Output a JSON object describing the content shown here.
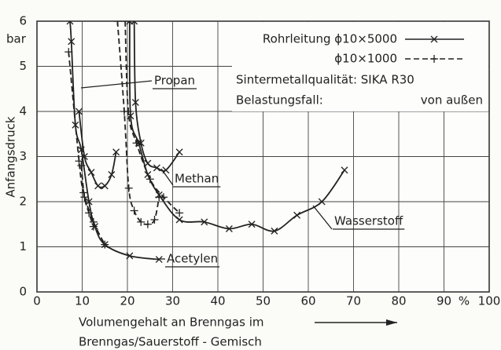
{
  "chart_data": {
    "type": "line",
    "xlabel": [
      "Volumengehalt an Brenngas im",
      "Brenngas/Sauerstoff - Gemisch"
    ],
    "ylabel": "Anfangsdruck",
    "x_unit": "%",
    "y_unit": "bar",
    "xlim": [
      0,
      100
    ],
    "ylim": [
      0,
      6
    ],
    "xticks": [
      0,
      10,
      20,
      30,
      40,
      50,
      60,
      70,
      80,
      90,
      100
    ],
    "yticks": [
      0,
      1,
      2,
      3,
      4,
      5,
      6
    ],
    "grid": true,
    "color": "#222222",
    "legend": [
      {
        "label": "Rohrleitung ϕ10×5000",
        "dashed": false,
        "marker": "x"
      },
      {
        "label": "ϕ10×1000",
        "dashed": true,
        "marker": "+"
      }
    ],
    "notes": [
      "Sintermetallqualität: SIKA R30",
      "Belastungsfall:",
      "von außen"
    ],
    "series": [
      {
        "name": "Propan",
        "curves": [
          {
            "x": [
              9.3,
              10.5,
              12,
              13.5,
              15,
              16.5,
              17.5
            ],
            "values": [
              4.0,
              3.0,
              2.65,
              2.35,
              2.35,
              2.6,
              3.1
            ]
          },
          {
            "x": [
              9.8,
              10.5,
              11.5,
              12.5
            ],
            "values": [
              2.8,
              2.1,
              1.75,
              1.45
            ]
          }
        ]
      },
      {
        "name": "Methan",
        "curves": [
          {
            "x": [
              21.5,
              21.8,
              23,
              24.5,
              26.5,
              28.5,
              31.5
            ],
            "values": [
              6.0,
              4.2,
              3.3,
              2.85,
              2.75,
              2.7,
              3.1
            ]
          },
          {
            "x": [
              17.8,
              19.3,
              20.3,
              21.5,
              23,
              24.5,
              26,
              27
            ],
            "values": [
              6.0,
              4.0,
              2.3,
              1.8,
              1.55,
              1.5,
              1.6,
              2.1
            ]
          }
        ]
      },
      {
        "name": "Wasserstoff",
        "curves": [
          {
            "x": [
              20.5,
              20.7,
              22.5,
              24.5,
              27,
              31.5,
              37,
              42.5,
              47.5,
              52.5,
              57.5,
              63,
              68
            ],
            "values": [
              6.0,
              3.9,
              3.3,
              2.6,
              2.15,
              1.6,
              1.55,
              1.4,
              1.5,
              1.35,
              1.7,
              2.0,
              2.7
            ]
          },
          {
            "x": [
              19.5,
              20.2,
              22,
              25,
              28,
              31.5
            ],
            "values": [
              6.0,
              4.0,
              3.3,
              2.5,
              2.1,
              1.75
            ]
          }
        ]
      },
      {
        "name": "Acetylen",
        "curves": [
          {
            "x": [
              7.3,
              7.6,
              8.5,
              9.8,
              11.5,
              12.8,
              15,
              20.5,
              27
            ],
            "values": [
              6.0,
              5.55,
              3.7,
              3.15,
              2.0,
              1.45,
              1.05,
              0.8,
              0.72
            ]
          },
          {
            "x": [
              7.0,
              9.3,
              10.3,
              12.5,
              15
            ],
            "values": [
              5.32,
              2.9,
              2.2,
              1.55,
              1.05
            ]
          }
        ]
      }
    ]
  }
}
